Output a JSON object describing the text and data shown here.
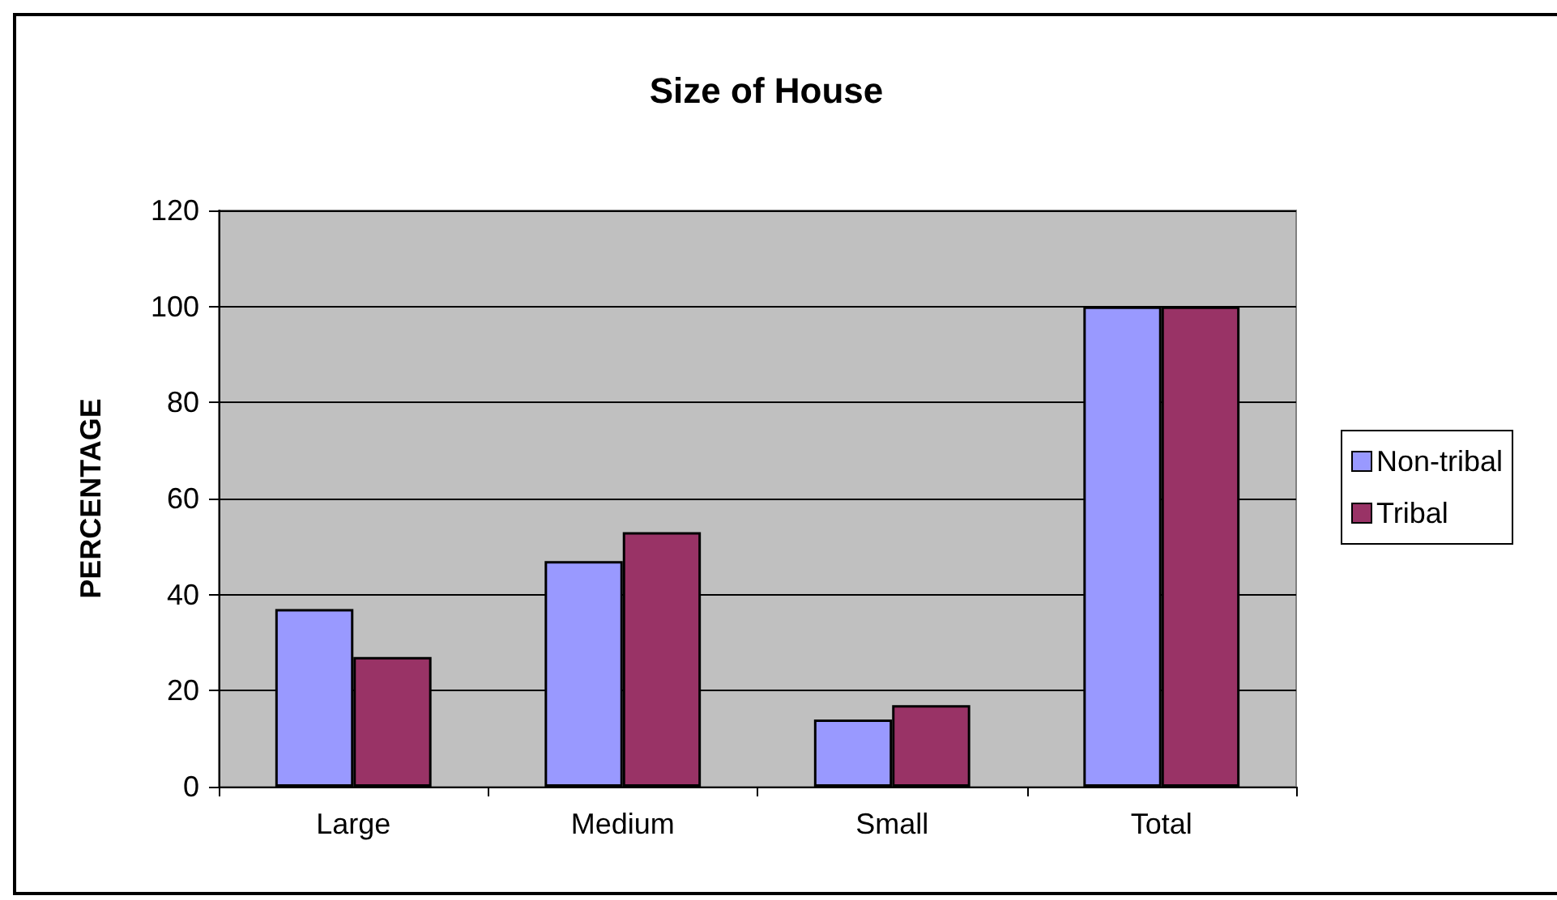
{
  "chart_data": {
    "type": "bar",
    "title": "Size of House",
    "ylabel": "PERCENTAGE",
    "categories": [
      "Large",
      "Medium",
      "Small",
      "Total"
    ],
    "series": [
      {
        "name": "Non-tribal",
        "color": "#9999ff",
        "values": [
          37,
          47,
          14,
          100
        ]
      },
      {
        "name": "Tribal",
        "color": "#993366",
        "values": [
          27,
          53,
          17,
          100
        ]
      }
    ],
    "ylim": [
      0,
      120
    ],
    "yticks": [
      0,
      20,
      40,
      60,
      80,
      100,
      120
    ],
    "grid": "y",
    "legend": "right"
  }
}
